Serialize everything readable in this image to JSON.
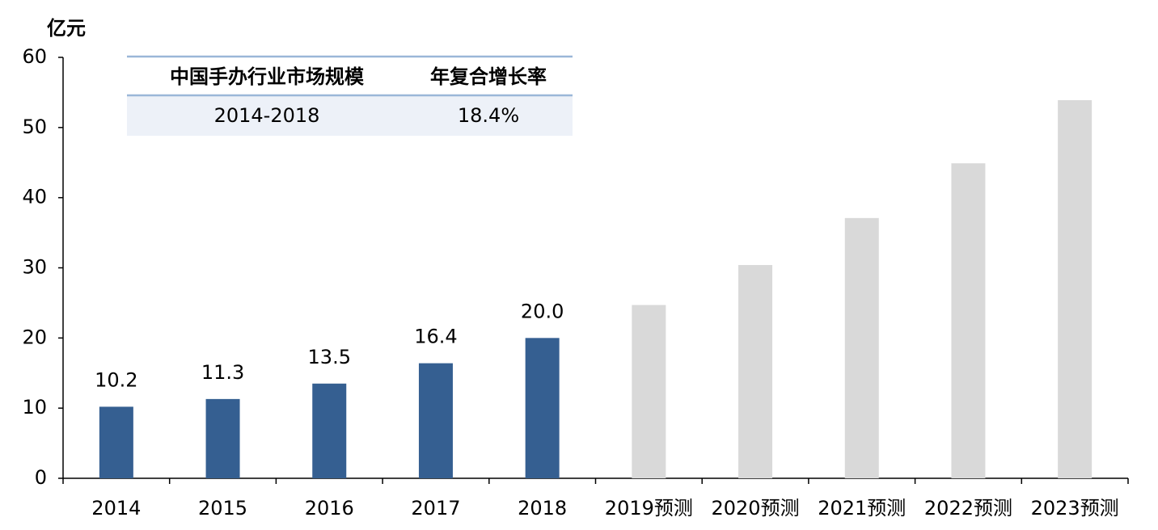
{
  "chart_data": {
    "type": "bar",
    "y_label": "亿元",
    "categories": [
      "2014",
      "2015",
      "2016",
      "2017",
      "2018",
      "2019预测",
      "2020预测",
      "2021预测",
      "2022预测",
      "2023预测"
    ],
    "values": [
      10.2,
      11.3,
      13.5,
      16.4,
      20,
      24.7,
      30.4,
      37.1,
      44.9,
      53.9
    ],
    "value_labels": [
      "10.2",
      "11.3",
      "13.5",
      "16.4",
      "20.0",
      null,
      null,
      null,
      null,
      null
    ],
    "colors": [
      "#355f91",
      "#355f91",
      "#355f91",
      "#355f91",
      "#355f91",
      "#d9d9d9",
      "#d9d9d9",
      "#d9d9d9",
      "#d9d9d9",
      "#d9d9d9"
    ],
    "ylim": [
      0,
      60
    ],
    "yticks": [
      0,
      10,
      20,
      30,
      40,
      50,
      60
    ],
    "grid": false,
    "table": {
      "header": [
        "中国手办行业市场规模",
        "年复合增长率"
      ],
      "rows": [
        [
          "2014-2018",
          "18.4%"
        ]
      ]
    }
  }
}
